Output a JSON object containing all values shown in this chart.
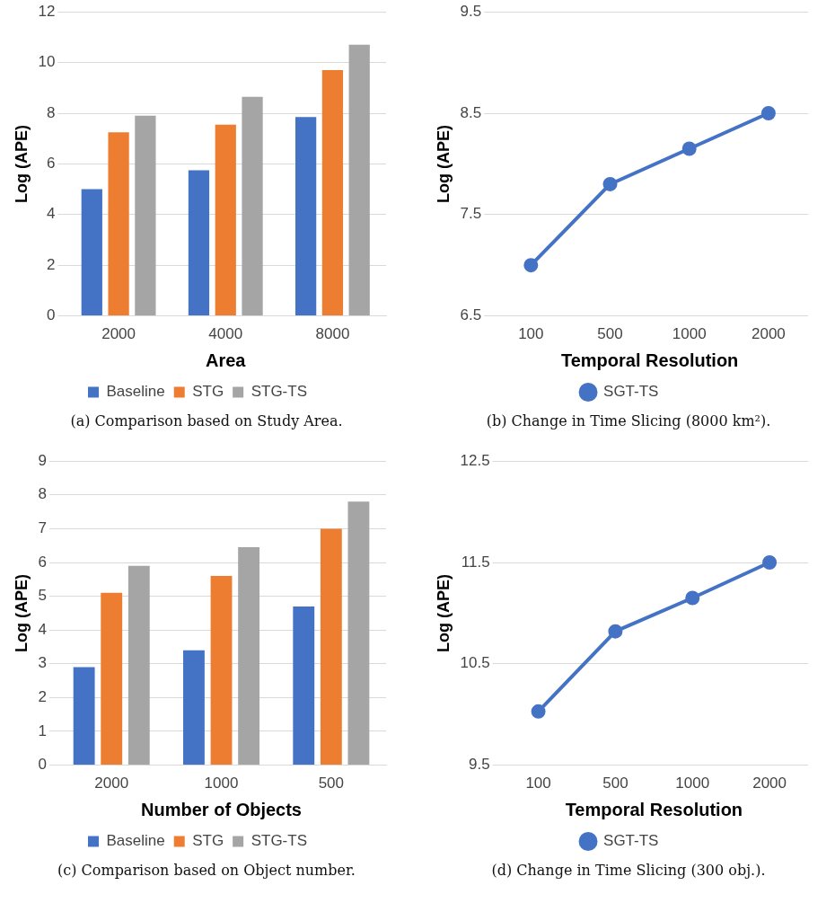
{
  "chart_data": [
    {
      "type": "bar",
      "xlabel": "Area",
      "ylabel": "Log (APE)",
      "categories": [
        "2000",
        "4000",
        "8000"
      ],
      "series": [
        {
          "name": "Baseline",
          "color": "#4472c4",
          "values": [
            5.0,
            5.75,
            7.85
          ]
        },
        {
          "name": "STG",
          "color": "#ed7d31",
          "values": [
            7.25,
            7.55,
            9.7
          ]
        },
        {
          "name": "STG-TS",
          "color": "#a5a5a5",
          "values": [
            7.9,
            8.65,
            10.7
          ]
        }
      ],
      "ylim": [
        0,
        12
      ],
      "yticks": [
        0,
        2,
        4,
        6,
        8,
        10,
        12
      ],
      "grid": "y",
      "legend": "bottom",
      "annotations": [
        "(a) Comparison based on Study Area."
      ]
    },
    {
      "type": "line",
      "xlabel": "Temporal Resolution",
      "ylabel": "Log (APE)",
      "categories": [
        "100",
        "500",
        "1000",
        "2000"
      ],
      "series": [
        {
          "name": "SGT-TS",
          "color": "#4472c4",
          "values": [
            7.0,
            7.8,
            8.15,
            8.5
          ]
        }
      ],
      "ylim": [
        6.5,
        9.5
      ],
      "yticks": [
        6.5,
        7.5,
        8.5,
        9.5
      ],
      "grid": "y",
      "legend": "bottom",
      "marker": "circle",
      "annotations": [
        "(b) Change in Time Slicing (8000 km²)."
      ]
    },
    {
      "type": "bar",
      "xlabel": "Number of Objects",
      "ylabel": "Log (APE)",
      "categories": [
        "2000",
        "1000",
        "500"
      ],
      "series": [
        {
          "name": "Baseline",
          "color": "#4472c4",
          "values": [
            2.9,
            3.4,
            4.7
          ]
        },
        {
          "name": "STG",
          "color": "#ed7d31",
          "values": [
            5.1,
            5.6,
            7.0
          ]
        },
        {
          "name": "STG-TS",
          "color": "#a5a5a5",
          "values": [
            5.9,
            6.45,
            7.8
          ]
        }
      ],
      "ylim": [
        0,
        9
      ],
      "yticks": [
        0,
        1,
        2,
        3,
        4,
        5,
        6,
        7,
        8,
        9
      ],
      "grid": "y",
      "legend": "bottom",
      "annotations": [
        "(c) Comparison based on Object number."
      ]
    },
    {
      "type": "line",
      "xlabel": "Temporal Resolution",
      "ylabel": "Log (APE)",
      "categories": [
        "100",
        "500",
        "1000",
        "2000"
      ],
      "series": [
        {
          "name": "SGT-TS",
          "color": "#4472c4",
          "values": [
            10.03,
            10.82,
            11.15,
            11.5
          ]
        }
      ],
      "ylim": [
        9.5,
        12.5
      ],
      "yticks": [
        9.5,
        10.5,
        11.5,
        12.5
      ],
      "grid": "y",
      "legend": "bottom",
      "marker": "circle",
      "annotations": [
        "(d) Change in Time Slicing (300 obj.)."
      ]
    }
  ]
}
